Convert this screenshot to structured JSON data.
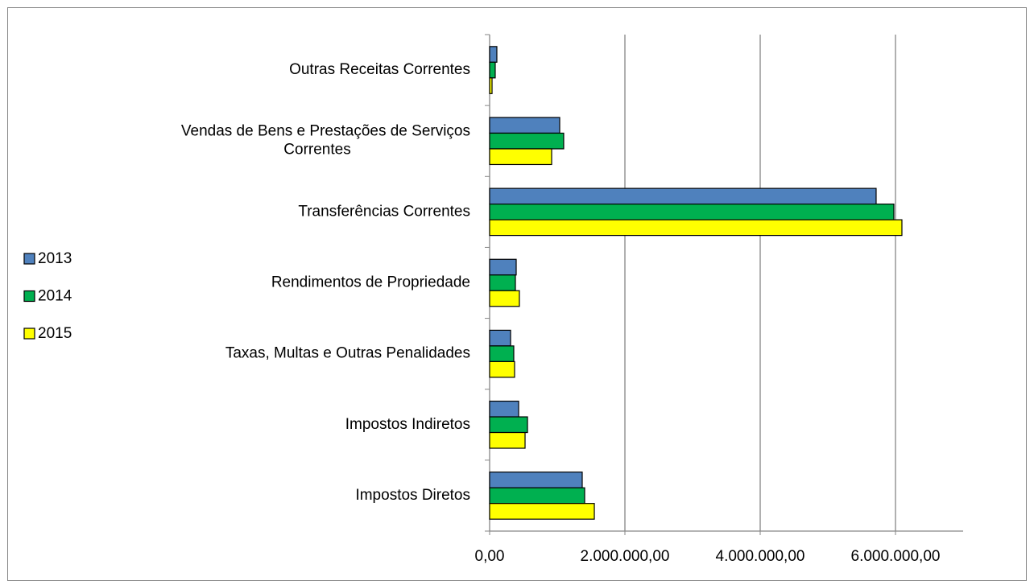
{
  "chart_data": {
    "type": "bar",
    "orientation": "horizontal",
    "categories": [
      "Impostos Diretos",
      "Impostos Indiretos",
      "Taxas, Multas e Outras Penalidades",
      "Rendimentos de Propriedade",
      "Transferências Correntes",
      "Vendas de Bens e Prestações de Serviços Correntes",
      "Outras Receitas Correntes"
    ],
    "series": [
      {
        "name": "2013",
        "color": "#4f81bd",
        "values": [
          1369000,
          429000,
          310000,
          393000,
          5714000,
          1036000,
          107000
        ]
      },
      {
        "name": "2014",
        "color": "#00b050",
        "values": [
          1405000,
          560000,
          357000,
          381000,
          5976000,
          1095000,
          83000
        ]
      },
      {
        "name": "2015",
        "color": "#ffff00",
        "values": [
          1548000,
          524000,
          369000,
          440000,
          6095000,
          917000,
          36000
        ]
      }
    ],
    "xlim": [
      0,
      7000000
    ],
    "xticks": [
      {
        "value": 0,
        "label": "0,00"
      },
      {
        "value": 2000000,
        "label": "2.000.000,00"
      },
      {
        "value": 4000000,
        "label": "4.000.000,00"
      },
      {
        "value": 6000000,
        "label": "6.000.000,00"
      }
    ],
    "grid": true,
    "legend": "left"
  }
}
